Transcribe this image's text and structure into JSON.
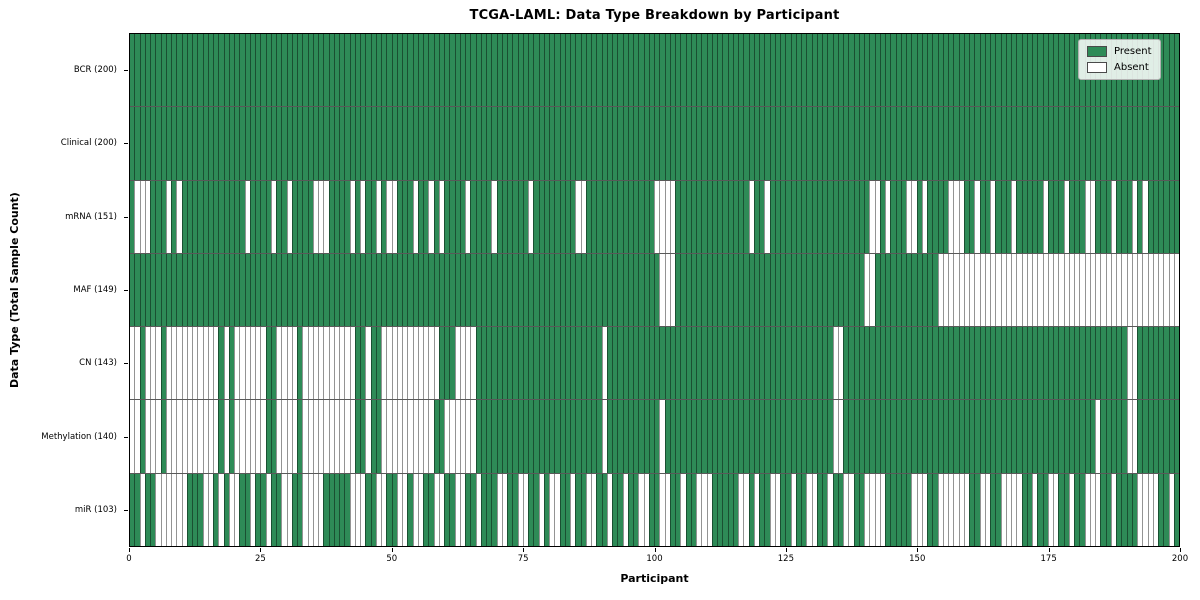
{
  "colors": {
    "present": "#2e8b57",
    "absent": "#ffffff",
    "cell_edge": "rgba(0,0,0,0.42)",
    "row_divider": "#2b2b2b",
    "plot_border": "#000000",
    "legend_border": "#b2b2b2"
  },
  "chart_data": {
    "type": "heatmap",
    "title": "TCGA-LAML: Data Type Breakdown by Participant",
    "xlabel": "Participant",
    "ylabel": "Data Type (Total Sample Count)",
    "x_range": [
      0,
      200
    ],
    "x_ticks": [
      0,
      25,
      50,
      75,
      100,
      125,
      150,
      175,
      200
    ],
    "n_participants": 200,
    "grid": false,
    "legend_position": "upper right",
    "legend": [
      {
        "label": "Present",
        "color": "#2e8b57"
      },
      {
        "label": "Absent",
        "color": "#ffffff"
      }
    ],
    "encoding": "presence chunks join to a 200-char string; char i = participant i; 1=Present, 0=Absent",
    "rows": [
      {
        "data_type": "BCR",
        "label": "BCR (200)",
        "present_count": 200,
        "presence": [
          "11111111111111111111",
          "11111111111111111111",
          "11111111111111111111",
          "11111111111111111111",
          "11111111111111111111",
          "11111111111111111111",
          "11111111111111111111",
          "11111111111111111111",
          "11111111111111111111",
          "11111111111111111111"
        ]
      },
      {
        "data_type": "Clinical",
        "label": "Clinical (200)",
        "present_count": 200,
        "presence": [
          "11111111111111111111",
          "11111111111111111111",
          "11111111111111111111",
          "11111111111111111111",
          "11111111111111111111",
          "11111111111111111111",
          "11111111111111111111",
          "11111111111111111111",
          "11111111111111111111",
          "11111111111111111111"
        ]
      },
      {
        "data_type": "mRNA",
        "label": "mRNA (151)",
        "present_count": 151,
        "presence": [
          "10001110101111111111",
          "11011110110111100011",
          "11010110100111011010",
          "11110111101111110111",
          "11111001111111111111",
          "00001111111111111101",
          "10111111111111111111",
          "10010111001011110001",
          "10110111011111011101",
          "11001110111010111111"
        ]
      },
      {
        "data_type": "MAF",
        "label": "MAF (149)",
        "present_count": 149,
        "presence": [
          "11111111111111111111",
          "11111111111111111111",
          "11111111111111111111",
          "11111111111111111111",
          "11111111111111111111",
          "10001111111111111111",
          "11111111111111111111",
          "00111111111111000000",
          "00000000000000000000",
          "00000000000000000000"
        ]
      },
      {
        "data_type": "CN",
        "label": "CN (143)",
        "present_count": 143,
        "presence": [
          "00100010000000000101",
          "00000011000010000000",
          "00011011000000000001",
          "11000011111111111111",
          "11111111110111111111",
          "11111111111111111111",
          "11111111111111001111",
          "11111111111111111111",
          "11111111111111111111",
          "11111111110011111111"
        ]
      },
      {
        "data_type": "Methylation",
        "label": "Methylation (140)",
        "present_count": 140,
        "presence": [
          "00100010000000000101",
          "00000011000010000000",
          "00011011000000000011",
          "00000011111111111111",
          "11111111110111111111",
          "10111111111111111111",
          "11111111111111001111",
          "11111111111111111111",
          "11111111111111111111",
          "11110111110011111111"
        ]
      },
      {
        "data_type": "miR",
        "label": "miR (103)",
        "present_count": 103,
        "presence": [
          "11011000000111001010",
          "01101101100110000111",
          "11000110011001001100",
          "11001101110011001101",
          "00110110011011011001",
          "10011011000111110010",
          "11001101100110110011",
          "00001111100011000000",
          "11001100001101100110",
          "11000110111100001101"
        ]
      }
    ]
  }
}
